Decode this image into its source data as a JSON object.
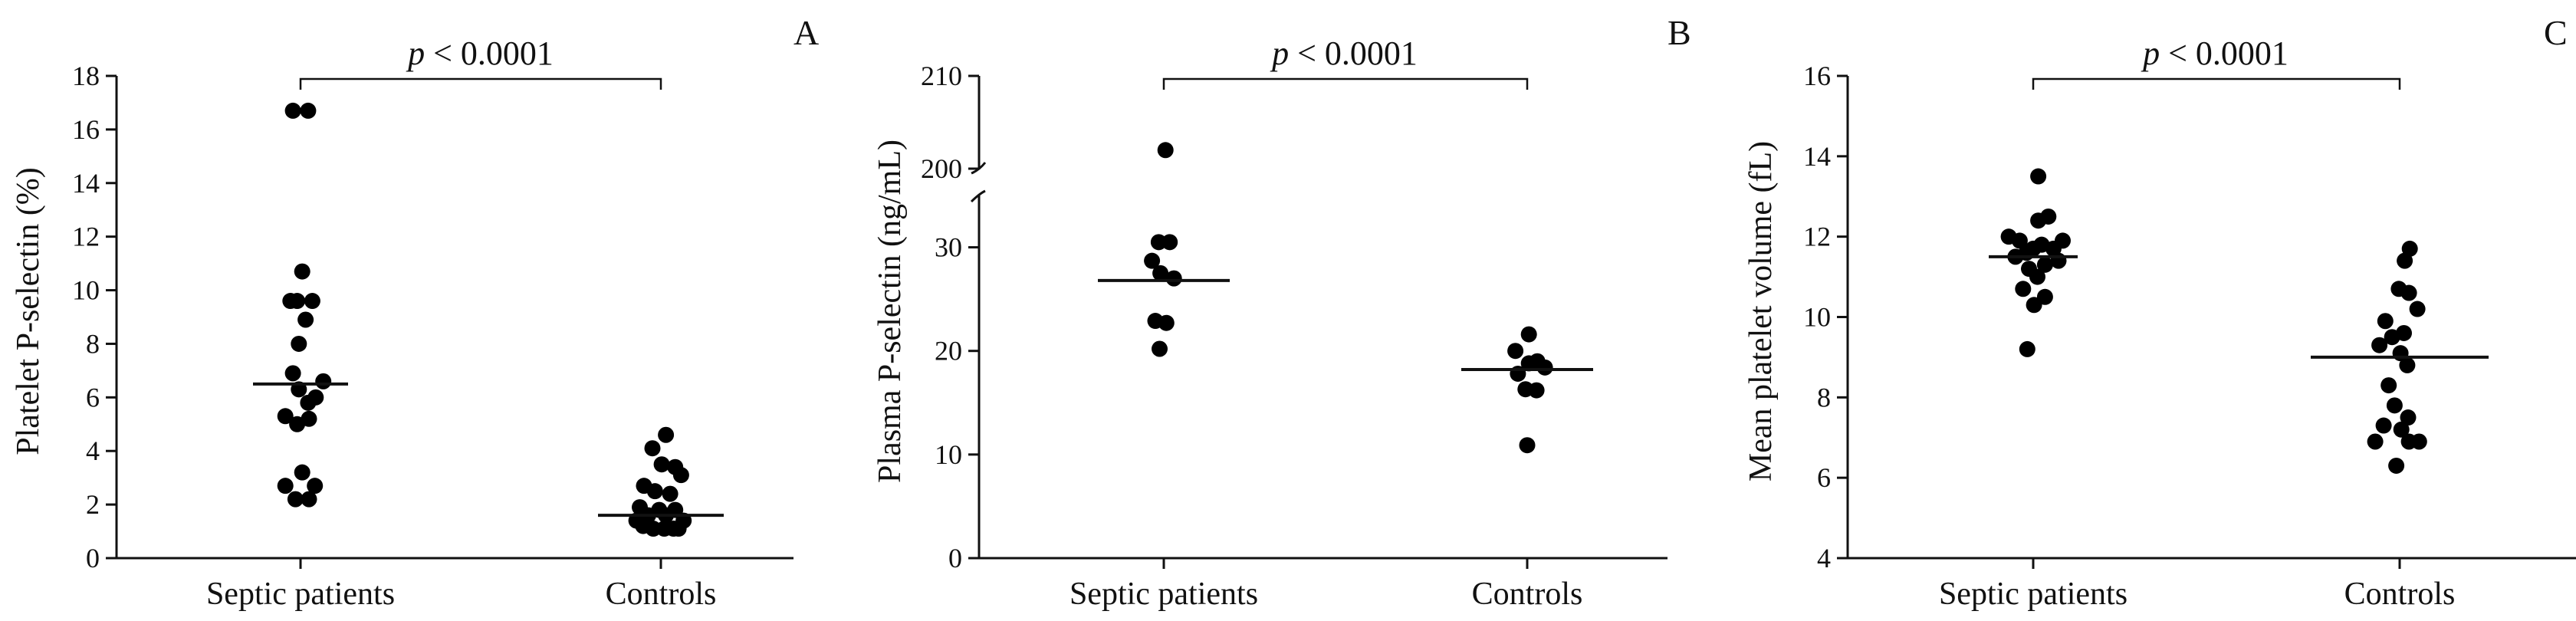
{
  "chart_data": [
    {
      "type": "scatter",
      "panel_label": "A",
      "ylabel": "Platelet P-selectin (%)",
      "categories": [
        "Septic patients",
        "Controls"
      ],
      "ylim": [
        0,
        18
      ],
      "yticks": [
        0,
        2,
        4,
        6,
        8,
        10,
        12,
        14,
        16,
        18
      ],
      "significance": {
        "italic": "p",
        "rest": " < 0.0001"
      },
      "medians": [
        6.5,
        1.6
      ],
      "groups": [
        {
          "category": "Septic patients",
          "points": [
            {
              "y": 16.7,
              "j": -0.45
            },
            {
              "y": 16.7,
              "j": 0.45
            },
            {
              "y": 10.7,
              "j": 0.1
            },
            {
              "y": 9.6,
              "j": -0.6
            },
            {
              "y": 9.6,
              "j": -0.2
            },
            {
              "y": 9.6,
              "j": 0.7
            },
            {
              "y": 8.9,
              "j": 0.3
            },
            {
              "y": 8.0,
              "j": -0.1
            },
            {
              "y": 6.9,
              "j": -0.45
            },
            {
              "y": 6.6,
              "j": 1.35
            },
            {
              "y": 6.3,
              "j": -0.1
            },
            {
              "y": 6.0,
              "j": 0.9
            },
            {
              "y": 5.8,
              "j": 0.45
            },
            {
              "y": 5.3,
              "j": -0.9
            },
            {
              "y": 5.2,
              "j": 0.5
            },
            {
              "y": 5.0,
              "j": -0.2
            },
            {
              "y": 3.2,
              "j": 0.1
            },
            {
              "y": 2.7,
              "j": -0.9
            },
            {
              "y": 2.7,
              "j": 0.85
            },
            {
              "y": 2.2,
              "j": -0.3
            },
            {
              "y": 2.2,
              "j": 0.5
            }
          ]
        },
        {
          "category": "Controls",
          "points": [
            {
              "y": 4.6,
              "j": 0.3
            },
            {
              "y": 4.1,
              "j": -0.5
            },
            {
              "y": 3.5,
              "j": 0.05
            },
            {
              "y": 3.4,
              "j": 0.85
            },
            {
              "y": 3.1,
              "j": 1.2
            },
            {
              "y": 2.7,
              "j": -1.0
            },
            {
              "y": 2.5,
              "j": -0.35
            },
            {
              "y": 2.4,
              "j": 0.55
            },
            {
              "y": 1.9,
              "j": -1.25
            },
            {
              "y": 1.8,
              "j": -0.1
            },
            {
              "y": 1.8,
              "j": 0.85
            },
            {
              "y": 1.6,
              "j": -0.75
            },
            {
              "y": 1.6,
              "j": 0.3
            },
            {
              "y": 1.4,
              "j": -1.45
            },
            {
              "y": 1.4,
              "j": 1.35
            },
            {
              "y": 1.2,
              "j": -1.05
            },
            {
              "y": 1.1,
              "j": -0.45
            },
            {
              "y": 1.1,
              "j": 0.2
            },
            {
              "y": 1.1,
              "j": 0.75
            },
            {
              "y": 1.1,
              "j": 1.05
            }
          ]
        }
      ]
    },
    {
      "type": "scatter",
      "panel_label": "B",
      "ylabel": "Plasma P-selectin (ng/mL)",
      "categories": [
        "Septic patients",
        "Controls"
      ],
      "y_axis_break": true,
      "ylim_lower": [
        0,
        35
      ],
      "yticks_lower": [
        0,
        10,
        20,
        30
      ],
      "ylim_upper": [
        200,
        210
      ],
      "yticks_upper": [
        200,
        210
      ],
      "significance": {
        "italic": "p",
        "rest": " < 0.0001"
      },
      "medians": [
        26.8,
        18.2
      ],
      "groups": [
        {
          "category": "Septic patients",
          "points": [
            {
              "y": 202.0,
              "j": 0.1
            },
            {
              "y": 30.5,
              "j": -0.3
            },
            {
              "y": 30.5,
              "j": 0.35
            },
            {
              "y": 28.7,
              "j": -0.7
            },
            {
              "y": 27.5,
              "j": -0.2
            },
            {
              "y": 27.0,
              "j": 0.6
            },
            {
              "y": 22.9,
              "j": -0.5
            },
            {
              "y": 22.7,
              "j": 0.15
            },
            {
              "y": 20.2,
              "j": -0.25
            }
          ]
        },
        {
          "category": "Controls",
          "points": [
            {
              "y": 21.6,
              "j": 0.1
            },
            {
              "y": 20.0,
              "j": -0.7
            },
            {
              "y": 19.0,
              "j": 0.6
            },
            {
              "y": 18.8,
              "j": 0.1
            },
            {
              "y": 18.4,
              "j": 1.05
            },
            {
              "y": 17.8,
              "j": -0.55
            },
            {
              "y": 16.3,
              "j": -0.1
            },
            {
              "y": 16.2,
              "j": 0.55
            },
            {
              "y": 10.9,
              "j": 0.0
            }
          ]
        }
      ]
    },
    {
      "type": "scatter",
      "panel_label": "C",
      "ylabel": "Mean platelet volume (fL)",
      "categories": [
        "Septic patients",
        "Controls"
      ],
      "ylim": [
        4,
        16
      ],
      "yticks": [
        4,
        6,
        8,
        10,
        12,
        14,
        16
      ],
      "significance": {
        "italic": "p",
        "rest": " < 0.0001"
      },
      "medians": [
        11.5,
        9.0
      ],
      "groups": [
        {
          "category": "Septic patients",
          "points": [
            {
              "y": 13.5,
              "j": 0.3
            },
            {
              "y": 12.5,
              "j": 0.9
            },
            {
              "y": 12.4,
              "j": 0.3
            },
            {
              "y": 12.0,
              "j": -1.45
            },
            {
              "y": 11.9,
              "j": -0.8
            },
            {
              "y": 11.9,
              "j": 1.75
            },
            {
              "y": 11.8,
              "j": 0.5
            },
            {
              "y": 11.7,
              "j": 1.2
            },
            {
              "y": 11.7,
              "j": 0.0
            },
            {
              "y": 11.6,
              "j": -0.4
            },
            {
              "y": 11.5,
              "j": -1.05
            },
            {
              "y": 11.4,
              "j": 1.5
            },
            {
              "y": 11.3,
              "j": 0.7
            },
            {
              "y": 11.2,
              "j": -0.25
            },
            {
              "y": 11.0,
              "j": 0.25
            },
            {
              "y": 10.7,
              "j": -0.6
            },
            {
              "y": 10.5,
              "j": 0.7
            },
            {
              "y": 10.3,
              "j": 0.05
            },
            {
              "y": 9.2,
              "j": -0.35
            }
          ]
        },
        {
          "category": "Controls",
          "points": [
            {
              "y": 11.7,
              "j": 0.6
            },
            {
              "y": 11.4,
              "j": 0.3
            },
            {
              "y": 10.7,
              "j": -0.05
            },
            {
              "y": 10.6,
              "j": 0.55
            },
            {
              "y": 10.2,
              "j": 1.05
            },
            {
              "y": 9.9,
              "j": -0.85
            },
            {
              "y": 9.6,
              "j": 0.25
            },
            {
              "y": 9.5,
              "j": -0.45
            },
            {
              "y": 9.3,
              "j": -1.2
            },
            {
              "y": 9.1,
              "j": 0.05
            },
            {
              "y": 8.8,
              "j": 0.45
            },
            {
              "y": 8.3,
              "j": -0.65
            },
            {
              "y": 7.8,
              "j": -0.3
            },
            {
              "y": 7.5,
              "j": 0.5
            },
            {
              "y": 7.3,
              "j": -0.95
            },
            {
              "y": 7.2,
              "j": 0.1
            },
            {
              "y": 6.9,
              "j": -1.45
            },
            {
              "y": 6.9,
              "j": 1.15
            },
            {
              "y": 6.9,
              "j": 0.55
            },
            {
              "y": 6.3,
              "j": -0.2
            }
          ]
        }
      ]
    }
  ]
}
